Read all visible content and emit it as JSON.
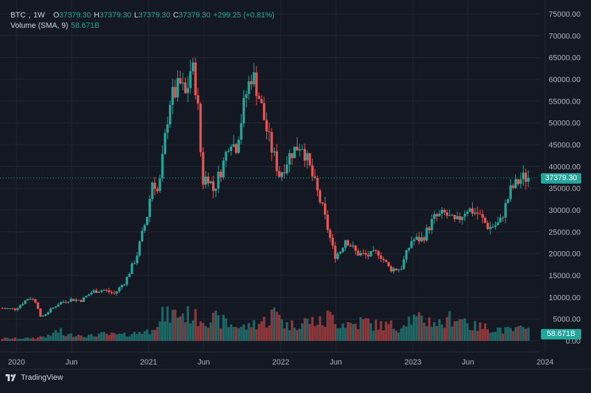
{
  "legend": {
    "symbol": "BTC",
    "interval": "1W",
    "o_label": "O",
    "open": "37379.30",
    "h_label": "H",
    "high": "37379.30",
    "l_label": "L",
    "low": "37379.30",
    "c_label": "C",
    "close": "37379.30",
    "change": "+299.25 (+0.81%)",
    "volume_label": "Volume (SMA, 9)",
    "volume_value": "58.671B"
  },
  "last_price_badge": "37379.30",
  "volume_badge": "58.671B",
  "brand": "TradingView",
  "colors": {
    "background": "#141823",
    "up": "#26a69a",
    "down": "#ef5350",
    "grid": "#222631",
    "text": "#d1d4dc"
  },
  "chart_data": {
    "type": "candlestick",
    "title": "",
    "symbol": "BTC",
    "interval": "1W",
    "y_ticks": [
      "75000.00",
      "70000.00",
      "65000.00",
      "60000.00",
      "55000.00",
      "50000.00",
      "45000.00",
      "40000.00",
      "35000.00",
      "30000.00",
      "25000.00",
      "20000.00",
      "15000.00",
      "10000.00",
      "5000.00",
      "0.00"
    ],
    "ylim": [
      0,
      75000
    ],
    "x_ticks": [
      {
        "label": "2020",
        "m": 0
      },
      {
        "label": "Jun",
        "m": 5
      },
      {
        "label": "2021",
        "m": 12
      },
      {
        "label": "Jun",
        "m": 17
      },
      {
        "label": "2022",
        "m": 24
      },
      {
        "label": "Jun",
        "m": 29
      },
      {
        "label": "2023",
        "m": 36
      },
      {
        "label": "Jun",
        "m": 41
      },
      {
        "label": "2024",
        "m": 48
      }
    ],
    "xlim_months": [
      -1.5,
      47.5
    ],
    "last_price": 37379.3,
    "price_path_months": [
      -1.4,
      0,
      1,
      1.3,
      2,
      2.2,
      3,
      4,
      5,
      6,
      7,
      8,
      9,
      10,
      11,
      12,
      12.5,
      13,
      14,
      15,
      15.5,
      16,
      16.5,
      17,
      17.5,
      18,
      19,
      19.5,
      20,
      21,
      21.5,
      22,
      23,
      24,
      25,
      26,
      27,
      28,
      29,
      29.5,
      30,
      31,
      32,
      33,
      34,
      35,
      36,
      37,
      38,
      39,
      40,
      41,
      42,
      43,
      44,
      45,
      46,
      46.4
    ],
    "price_path": [
      7500,
      7300,
      9400,
      10000,
      8800,
      5200,
      6700,
      8700,
      9500,
      9300,
      11300,
      11700,
      10800,
      13700,
      19300,
      29000,
      37500,
      33500,
      55000,
      58800,
      56000,
      63500,
      57000,
      36500,
      38000,
      34500,
      41500,
      47000,
      44000,
      57000,
      61500,
      57500,
      46500,
      38000,
      43000,
      45500,
      37600,
      29500,
      19500,
      20500,
      23500,
      20100,
      19500,
      20300,
      16500,
      16500,
      23100,
      23400,
      28100,
      29200,
      27000,
      30400,
      29200,
      26000,
      27000,
      34600,
      37400,
      37379
    ],
    "volume": {
      "scale_max": 2000,
      "monthly_avg": [
        60,
        70,
        110,
        220,
        140,
        150,
        120,
        160,
        150,
        140,
        180,
        230,
        420,
        600,
        640,
        620,
        550,
        520,
        460,
        380,
        330,
        420,
        470,
        650,
        380,
        420,
        470,
        440,
        580,
        420,
        400,
        460,
        380,
        370,
        330,
        520,
        500,
        480,
        420,
        560,
        520,
        340,
        320,
        290,
        250,
        270,
        470,
        360
      ]
    }
  }
}
